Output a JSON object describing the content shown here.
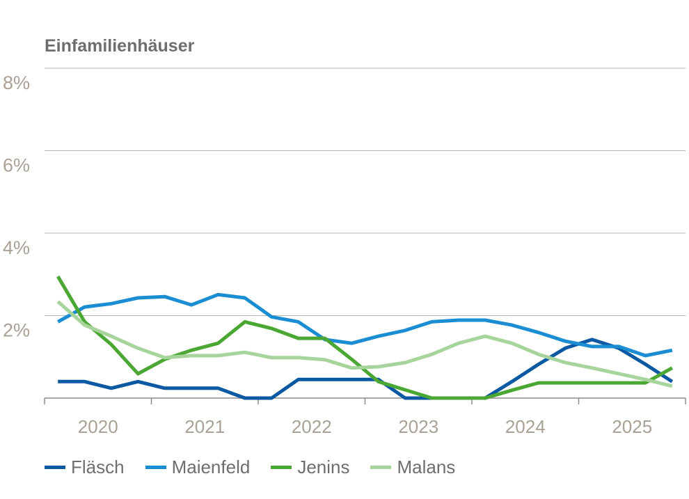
{
  "chart_data": {
    "type": "line",
    "title": "Einfamilienhäuser",
    "xlabel": "",
    "ylabel": "",
    "ylim": [
      0,
      8
    ],
    "yticks": [
      {
        "value": 2,
        "label": "2%"
      },
      {
        "value": 4,
        "label": "4%"
      },
      {
        "value": 6,
        "label": "6%"
      },
      {
        "value": 8,
        "label": "8%"
      }
    ],
    "xtick_labels": [
      "2020",
      "2021",
      "2022",
      "2023",
      "2024",
      "2025"
    ],
    "x": [
      "2020Q1",
      "2020Q2",
      "2020Q3",
      "2020Q4",
      "2021Q1",
      "2021Q2",
      "2021Q3",
      "2021Q4",
      "2022Q1",
      "2022Q2",
      "2022Q3",
      "2022Q4",
      "2023Q1",
      "2023Q2",
      "2023Q3",
      "2023Q4",
      "2024Q1",
      "2024Q2",
      "2024Q3",
      "2024Q4",
      "2025Q1",
      "2025Q2",
      "2025Q3",
      "2025Q4"
    ],
    "grid": true,
    "legend_position": "bottom",
    "series": [
      {
        "name": "Fläsch",
        "color": "#0b58a3",
        "values": [
          0.4,
          0.4,
          0.24,
          0.4,
          0.24,
          0.24,
          0.24,
          0,
          0,
          0.45,
          0.45,
          0.45,
          0.45,
          0,
          0,
          0,
          0,
          0.4,
          0.82,
          1.21,
          1.42,
          1.21,
          0.82,
          0.4
        ]
      },
      {
        "name": "Maienfeld",
        "color": "#1b8dd3",
        "values": [
          1.85,
          2.21,
          2.29,
          2.43,
          2.46,
          2.26,
          2.51,
          2.43,
          1.97,
          1.85,
          1.42,
          1.33,
          1.5,
          1.64,
          1.85,
          1.89,
          1.89,
          1.77,
          1.59,
          1.38,
          1.25,
          1.25,
          1.03,
          1.16
        ]
      },
      {
        "name": "Jenins",
        "color": "#4ba733",
        "values": [
          2.95,
          1.85,
          1.3,
          0.59,
          0.94,
          1.16,
          1.33,
          1.85,
          1.69,
          1.45,
          1.45,
          0.94,
          0.4,
          0.2,
          0,
          0,
          0,
          0.19,
          0.37,
          0.37,
          0.37,
          0.37,
          0.37,
          0.73
        ]
      },
      {
        "name": "Malans",
        "color": "#a6d49b",
        "values": [
          2.34,
          1.77,
          1.5,
          1.21,
          0.98,
          1.03,
          1.03,
          1.11,
          0.98,
          0.98,
          0.93,
          0.73,
          0.76,
          0.86,
          1.06,
          1.33,
          1.5,
          1.33,
          1.06,
          0.86,
          0.73,
          0.59,
          0.45,
          0.29
        ]
      }
    ]
  }
}
